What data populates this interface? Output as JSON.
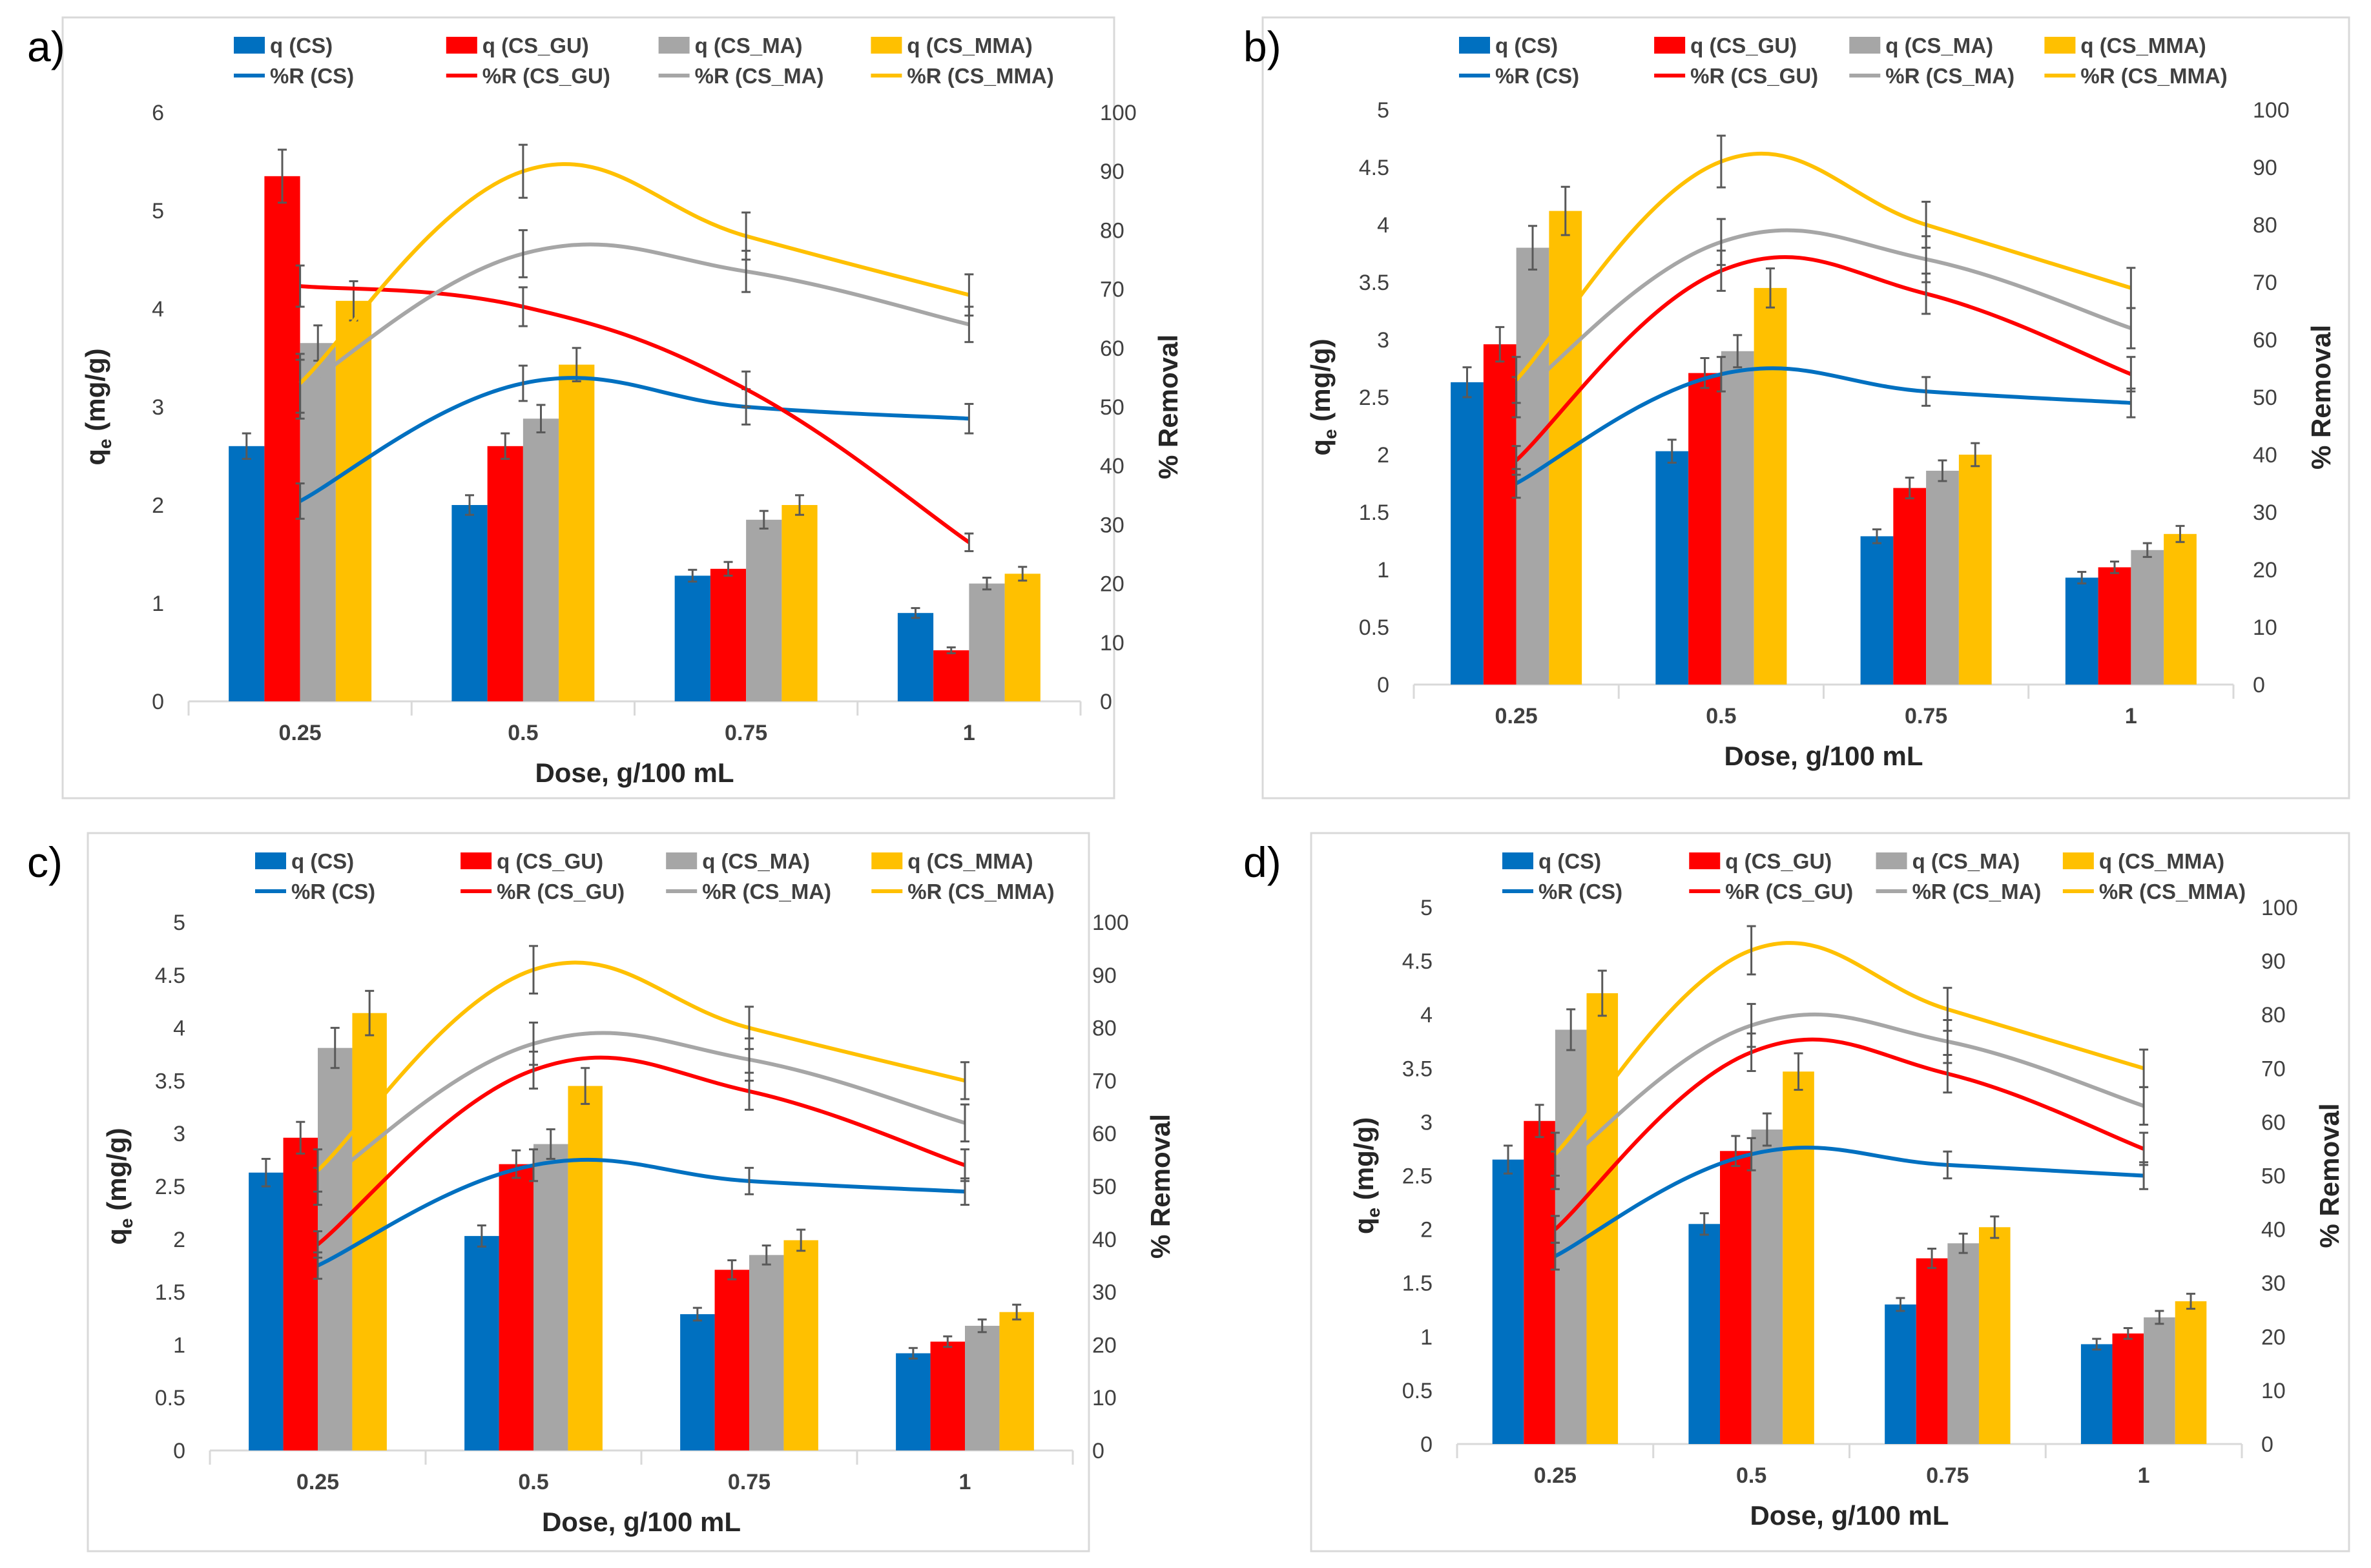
{
  "chart_data": [
    {
      "panel_label": "a)",
      "type": "bar",
      "categories": [
        "0.25",
        "0.5",
        "0.75",
        "1"
      ],
      "xlabel": "Dose, g/100 mL",
      "ylabel": "q_e (mg/g)",
      "ylabel_parts": [
        "q",
        "e",
        " (mg/g)"
      ],
      "y2label": "% Removal",
      "ylim": [
        0,
        6
      ],
      "yticks": [
        "0",
        "1",
        "2",
        "3",
        "4",
        "5",
        "6"
      ],
      "y2lim": [
        0,
        100
      ],
      "y2ticks": [
        "0",
        "10",
        "20",
        "30",
        "40",
        "50",
        "60",
        "70",
        "80",
        "90",
        "100"
      ],
      "series": [
        {
          "name": "q (CS)",
          "kind": "bar",
          "values": [
            2.6,
            2.0,
            1.28,
            0.9
          ],
          "errors": [
            0.13,
            0.1,
            0.06,
            0.05
          ]
        },
        {
          "name": "q (CS_GU)",
          "kind": "bar",
          "values": [
            5.35,
            2.6,
            1.35,
            0.52
          ],
          "errors": [
            0.27,
            0.13,
            0.07,
            0.03
          ]
        },
        {
          "name": "q (CS_MA)",
          "kind": "bar",
          "values": [
            3.65,
            2.88,
            1.85,
            1.2
          ],
          "errors": [
            0.18,
            0.14,
            0.09,
            0.06
          ]
        },
        {
          "name": "q (CS_MMA)",
          "kind": "bar",
          "values": [
            4.08,
            3.43,
            2.0,
            1.3
          ],
          "errors": [
            0.2,
            0.17,
            0.1,
            0.07
          ]
        },
        {
          "name": "%R (CS)",
          "kind": "line",
          "values": [
            34,
            54,
            50,
            48
          ],
          "errors": [
            3,
            3,
            3,
            2.5
          ]
        },
        {
          "name": "%R (CS_GU)",
          "kind": "line",
          "values": [
            70.5,
            67,
            53,
            27
          ],
          "errors": [
            3.5,
            3.3,
            3,
            1.5
          ]
        },
        {
          "name": "%R (CS_MA)",
          "kind": "line",
          "values": [
            53,
            76,
            73,
            64
          ],
          "errors": [
            5,
            4,
            3.5,
            3
          ]
        },
        {
          "name": "%R (CS_MMA)",
          "kind": "line",
          "values": [
            54,
            90,
            79,
            69
          ],
          "errors": [
            5,
            4.5,
            4,
            3.5
          ]
        }
      ]
    },
    {
      "panel_label": "b)",
      "type": "bar",
      "categories": [
        "0.25",
        "0.5",
        "0.75",
        "1"
      ],
      "xlabel": "Dose, g/100 mL",
      "ylabel": "q_e (mg/g)",
      "ylabel_parts": [
        "q",
        "e",
        " (mg/g)"
      ],
      "y2label": "% Removal",
      "ylim": [
        0,
        5
      ],
      "yticks": [
        "0",
        "0.5",
        "1",
        "1.5",
        "2",
        "2.5",
        "3",
        "3.5",
        "4",
        "4.5",
        "5"
      ],
      "y2lim": [
        0,
        100
      ],
      "y2ticks": [
        "0",
        "10",
        "20",
        "30",
        "40",
        "50",
        "60",
        "70",
        "80",
        "90",
        "100"
      ],
      "series": [
        {
          "name": "q (CS)",
          "kind": "bar",
          "values": [
            2.63,
            2.03,
            1.29,
            0.93
          ],
          "errors": [
            0.13,
            0.1,
            0.06,
            0.05
          ]
        },
        {
          "name": "q (CS_GU)",
          "kind": "bar",
          "values": [
            2.96,
            2.71,
            1.71,
            1.02
          ],
          "errors": [
            0.15,
            0.13,
            0.09,
            0.05
          ]
        },
        {
          "name": "q (CS_MA)",
          "kind": "bar",
          "values": [
            3.8,
            2.9,
            1.86,
            1.17
          ],
          "errors": [
            0.19,
            0.14,
            0.09,
            0.06
          ]
        },
        {
          "name": "q (CS_MMA)",
          "kind": "bar",
          "values": [
            4.12,
            3.45,
            2.0,
            1.31
          ],
          "errors": [
            0.21,
            0.17,
            0.1,
            0.07
          ]
        },
        {
          "name": "%R (CS)",
          "kind": "line",
          "values": [
            35,
            54,
            51,
            49
          ],
          "errors": [
            2.5,
            3,
            2.5,
            2.5
          ]
        },
        {
          "name": "%R (CS_GU)",
          "kind": "line",
          "values": [
            39,
            72,
            68,
            54
          ],
          "errors": [
            2.5,
            3.5,
            3.5,
            3
          ]
        },
        {
          "name": "%R (CS_MA)",
          "kind": "line",
          "values": [
            50,
            77,
            74,
            62
          ],
          "errors": [
            3.5,
            4,
            4,
            3.5
          ]
        },
        {
          "name": "%R (CS_MMA)",
          "kind": "line",
          "values": [
            53,
            91,
            80,
            69
          ],
          "errors": [
            4,
            4.5,
            4,
            3.5
          ]
        }
      ]
    },
    {
      "panel_label": "c)",
      "type": "bar",
      "categories": [
        "0.25",
        "0.5",
        "0.75",
        "1"
      ],
      "xlabel": "Dose, g/100 mL",
      "ylabel": "q_e (mg/g)",
      "ylabel_parts": [
        "q",
        "e",
        " (mg/g)"
      ],
      "y2label": "% Removal",
      "ylim": [
        0,
        5
      ],
      "yticks": [
        "0",
        "0.5",
        "1",
        "1.5",
        "2",
        "2.5",
        "3",
        "3.5",
        "4",
        "4.5",
        "5"
      ],
      "y2lim": [
        0,
        100
      ],
      "y2ticks": [
        "0",
        "10",
        "20",
        "30",
        "40",
        "50",
        "60",
        "70",
        "80",
        "90",
        "100"
      ],
      "series": [
        {
          "name": "q (CS)",
          "kind": "bar",
          "values": [
            2.63,
            2.03,
            1.29,
            0.92
          ],
          "errors": [
            0.13,
            0.1,
            0.06,
            0.05
          ]
        },
        {
          "name": "q (CS_GU)",
          "kind": "bar",
          "values": [
            2.96,
            2.71,
            1.71,
            1.03
          ],
          "errors": [
            0.15,
            0.13,
            0.09,
            0.05
          ]
        },
        {
          "name": "q (CS_MA)",
          "kind": "bar",
          "values": [
            3.81,
            2.9,
            1.85,
            1.18
          ],
          "errors": [
            0.19,
            0.14,
            0.09,
            0.06
          ]
        },
        {
          "name": "q (CS_MMA)",
          "kind": "bar",
          "values": [
            4.14,
            3.45,
            1.99,
            1.31
          ],
          "errors": [
            0.21,
            0.17,
            0.1,
            0.07
          ]
        },
        {
          "name": "%R (CS)",
          "kind": "line",
          "values": [
            35,
            54,
            51,
            49
          ],
          "errors": [
            2.5,
            3,
            2.5,
            2.5
          ]
        },
        {
          "name": "%R (CS_GU)",
          "kind": "line",
          "values": [
            39,
            72,
            68,
            54
          ],
          "errors": [
            2.5,
            3.5,
            3.5,
            3
          ]
        },
        {
          "name": "%R (CS_MA)",
          "kind": "line",
          "values": [
            50,
            77,
            74,
            62
          ],
          "errors": [
            3.5,
            4,
            4,
            3.5
          ]
        },
        {
          "name": "%R (CS_MMA)",
          "kind": "line",
          "values": [
            53,
            91,
            80,
            70
          ],
          "errors": [
            4,
            4.5,
            4,
            3.5
          ]
        }
      ]
    },
    {
      "panel_label": "d)",
      "type": "bar",
      "categories": [
        "0.25",
        "0.5",
        "0.75",
        "1"
      ],
      "xlabel": "Dose, g/100 mL",
      "ylabel": "q_e (mg/g)",
      "ylabel_parts": [
        "q",
        "e",
        " (mg/g)"
      ],
      "y2label": "% Removal",
      "ylim": [
        0,
        5
      ],
      "yticks": [
        "0",
        "0.5",
        "1",
        "1.5",
        "2",
        "2.5",
        "3",
        "3.5",
        "4",
        "4.5",
        "5"
      ],
      "y2lim": [
        0,
        100
      ],
      "y2ticks": [
        "0",
        "10",
        "20",
        "30",
        "40",
        "50",
        "60",
        "70",
        "80",
        "90",
        "100"
      ],
      "series": [
        {
          "name": "q (CS)",
          "kind": "bar",
          "values": [
            2.65,
            2.05,
            1.3,
            0.93
          ],
          "errors": [
            0.13,
            0.1,
            0.06,
            0.05
          ]
        },
        {
          "name": "q (CS_GU)",
          "kind": "bar",
          "values": [
            3.01,
            2.73,
            1.73,
            1.03
          ],
          "errors": [
            0.15,
            0.14,
            0.09,
            0.05
          ]
        },
        {
          "name": "q (CS_MA)",
          "kind": "bar",
          "values": [
            3.86,
            2.93,
            1.87,
            1.18
          ],
          "errors": [
            0.19,
            0.15,
            0.09,
            0.06
          ]
        },
        {
          "name": "q (CS_MMA)",
          "kind": "bar",
          "values": [
            4.2,
            3.47,
            2.02,
            1.33
          ],
          "errors": [
            0.21,
            0.17,
            0.1,
            0.07
          ]
        },
        {
          "name": "%R (CS)",
          "kind": "line",
          "values": [
            35,
            54,
            52,
            50
          ],
          "errors": [
            2.5,
            3,
            2.5,
            2.5
          ]
        },
        {
          "name": "%R (CS_GU)",
          "kind": "line",
          "values": [
            40,
            73,
            69,
            55
          ],
          "errors": [
            2.5,
            3.5,
            3.5,
            3
          ]
        },
        {
          "name": "%R (CS_MA)",
          "kind": "line",
          "values": [
            51,
            78,
            75,
            63
          ],
          "errors": [
            3.5,
            4,
            4,
            3.5
          ]
        },
        {
          "name": "%R (CS_MMA)",
          "kind": "line",
          "values": [
            54,
            92,
            81,
            70
          ],
          "errors": [
            4,
            4.5,
            4,
            3.5
          ]
        }
      ]
    }
  ],
  "colors": {
    "CS": "#0070C0",
    "CS_GU": "#FF0000",
    "CS_MA": "#A6A6A6",
    "CS_MMA": "#FFC000",
    "axis_text": "#404040",
    "frame": "#d9d9d9",
    "error_bar": "#595959"
  }
}
